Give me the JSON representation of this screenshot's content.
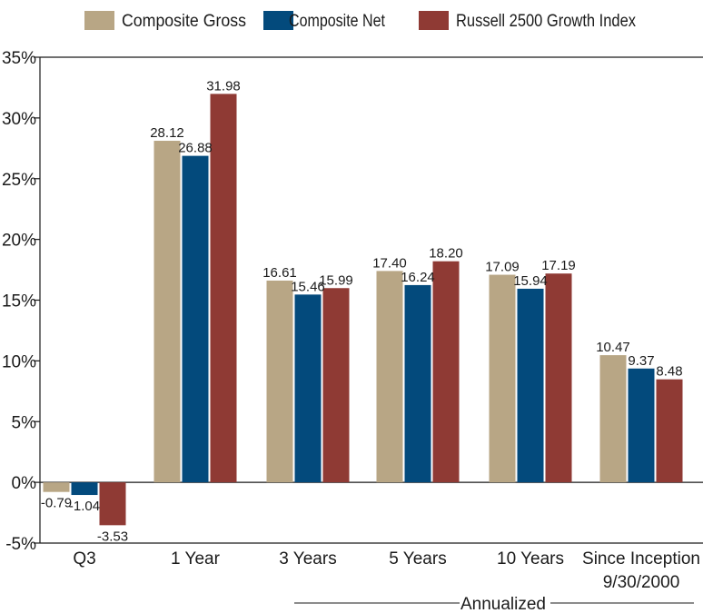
{
  "chart_data": {
    "type": "bar",
    "title": "",
    "xlabel": "",
    "ylabel": "",
    "ylim": [
      -5,
      35
    ],
    "yticks": [
      -5,
      0,
      5,
      10,
      15,
      20,
      25,
      30,
      35
    ],
    "ytick_labels": [
      "-5%",
      "0%",
      "5%",
      "10%",
      "15%",
      "20%",
      "25%",
      "30%",
      "35%"
    ],
    "categories": [
      "Q3",
      "1 Year",
      "3 Years",
      "5 Years",
      "10 Years",
      "Since Inception 9/30/2000"
    ],
    "category_label_lines": [
      [
        "Q3"
      ],
      [
        "1 Year"
      ],
      [
        "3 Years"
      ],
      [
        "5 Years"
      ],
      [
        "10 Years"
      ],
      [
        "Since Inception",
        "9/30/2000"
      ]
    ],
    "series": [
      {
        "name": "Composite Gross",
        "color": "#b8a685",
        "values": [
          -0.79,
          28.12,
          16.61,
          17.4,
          17.09,
          10.47
        ],
        "labels": [
          "-0.79",
          "28.12",
          "16.61",
          "17.40",
          "17.09",
          "10.47"
        ]
      },
      {
        "name": "Composite Net",
        "color": "#034a7c",
        "values": [
          -1.04,
          26.88,
          15.46,
          16.24,
          15.94,
          9.37
        ],
        "labels": [
          "-1.04",
          "26.88",
          "15.46",
          "16.24",
          "15.94",
          "9.37"
        ]
      },
      {
        "name": "Russell 2500 Growth Index",
        "color": "#8f3a34",
        "values": [
          -3.53,
          31.98,
          15.99,
          18.2,
          17.19,
          8.48
        ],
        "labels": [
          "-3.53",
          "31.98",
          "15.99",
          "18.20",
          "17.19",
          "8.48"
        ]
      }
    ],
    "annotation": "Annualized",
    "legend_position": "top",
    "grid": false
  }
}
